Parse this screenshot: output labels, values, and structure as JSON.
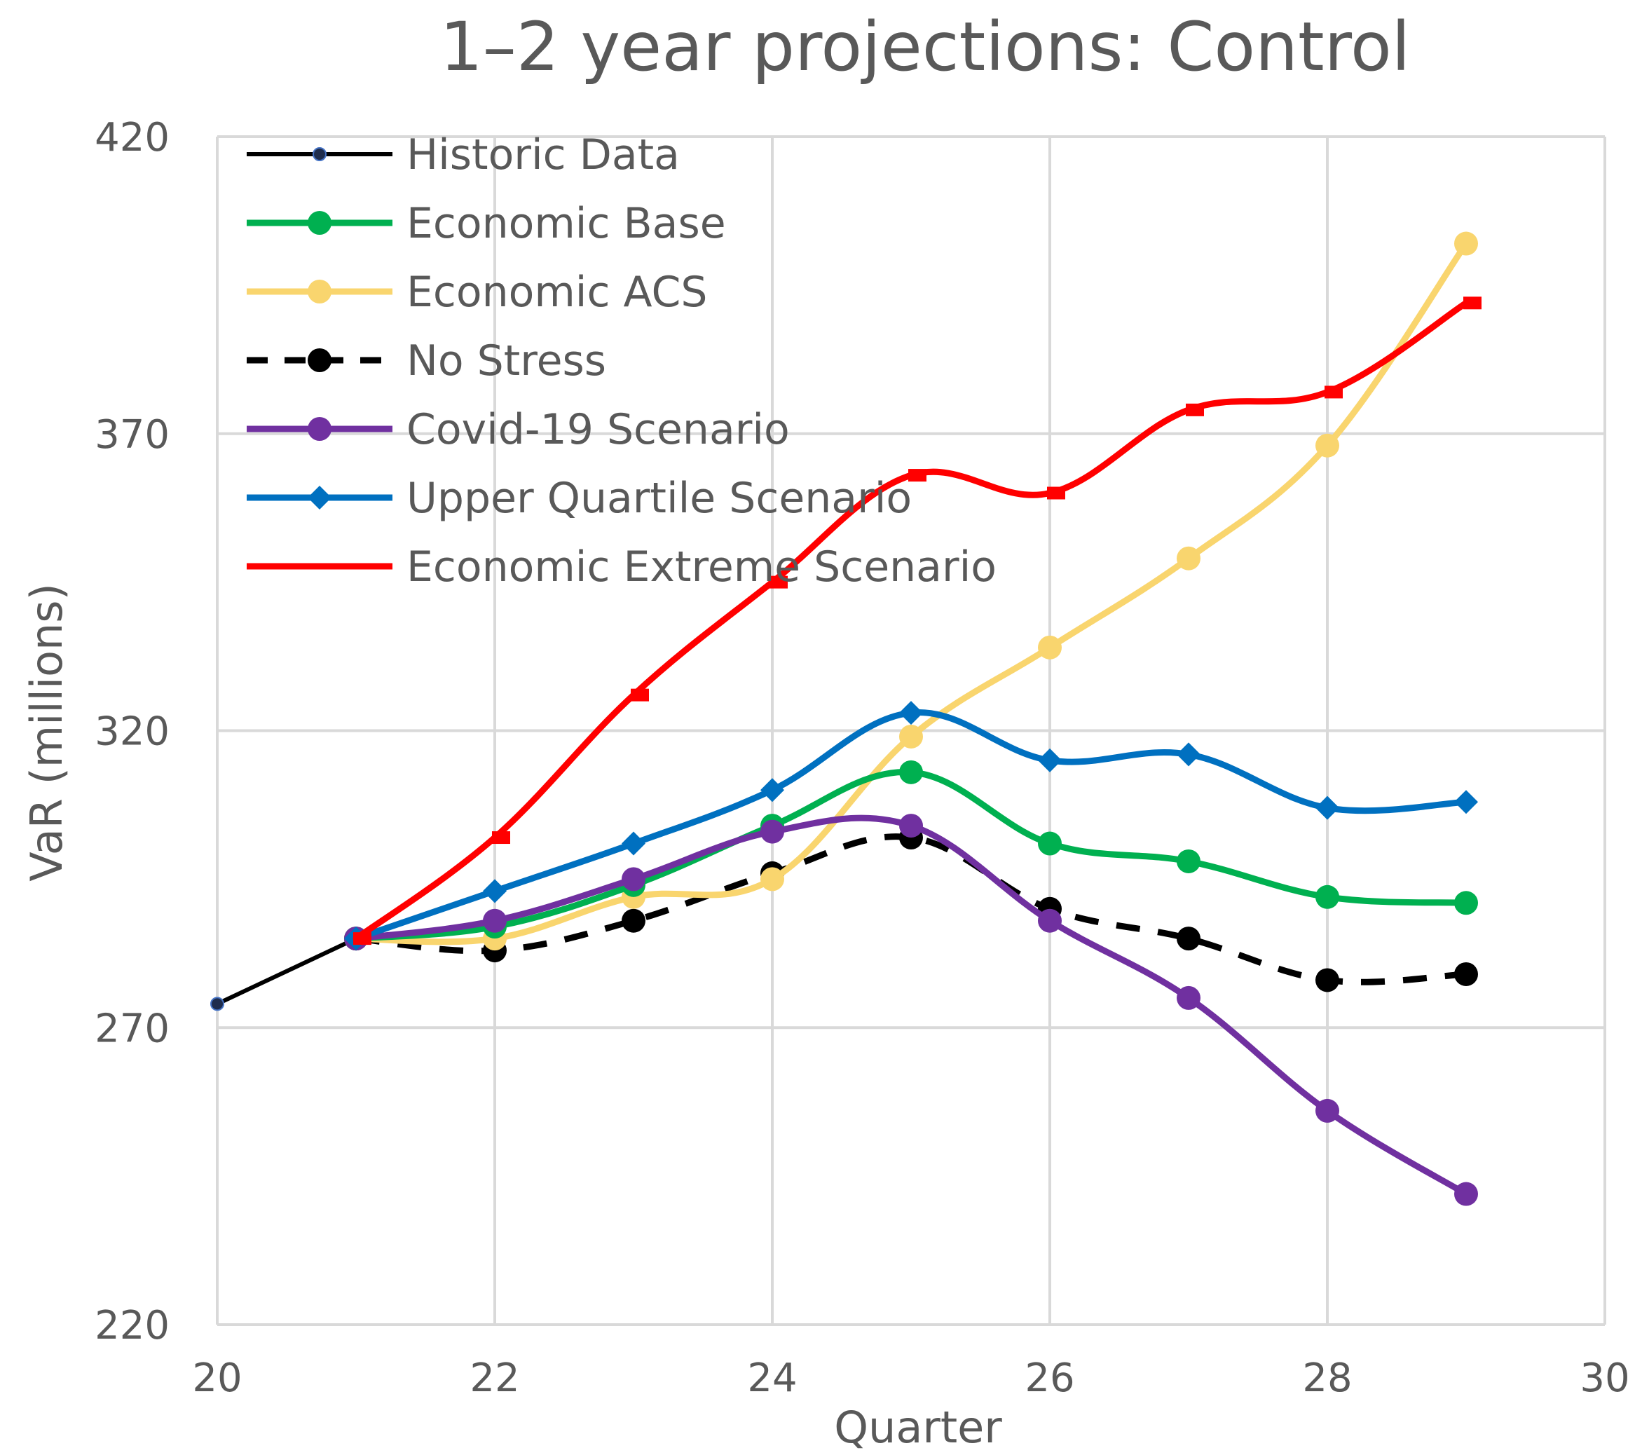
{
  "chart_data": {
    "type": "line",
    "title": "1–2 year projections: Control",
    "xlabel": "Quarter",
    "ylabel": "VaR (millions)",
    "xlim": [
      20,
      30
    ],
    "ylim": [
      220,
      420
    ],
    "xticks": [
      20,
      22,
      24,
      26,
      28,
      30
    ],
    "yticks": [
      220,
      270,
      320,
      370,
      420
    ],
    "grid": true,
    "legend_position": "top-left",
    "series": [
      {
        "name": "Historic Data",
        "color": "#000000",
        "marker": "small-circle",
        "dash": "solid",
        "x": [
          20,
          21
        ],
        "y": [
          274,
          285
        ]
      },
      {
        "name": "Economic Base",
        "color": "#00b050",
        "marker": "circle",
        "dash": "solid",
        "x": [
          21,
          22,
          23,
          24,
          25,
          26,
          27,
          28,
          29
        ],
        "y": [
          285,
          287,
          294,
          304,
          313,
          301,
          298,
          292,
          291
        ]
      },
      {
        "name": "Economic ACS",
        "color": "#f9d56e",
        "marker": "circle",
        "dash": "solid",
        "x": [
          21,
          22,
          23,
          24,
          25,
          26,
          27,
          28,
          29
        ],
        "y": [
          285,
          285,
          292,
          295,
          319,
          334,
          349,
          368,
          402
        ]
      },
      {
        "name": "No Stress",
        "color": "#000000",
        "marker": "circle",
        "dash": "dashed",
        "x": [
          21,
          22,
          23,
          24,
          25,
          26,
          27,
          28,
          29
        ],
        "y": [
          285,
          283,
          288,
          296,
          302,
          290,
          285,
          278,
          279
        ]
      },
      {
        "name": "Covid-19 Scenario",
        "color": "#7030a0",
        "marker": "circle",
        "dash": "solid",
        "x": [
          21,
          22,
          23,
          24,
          25,
          26,
          27,
          28,
          29
        ],
        "y": [
          285,
          288,
          295,
          303,
          304,
          288,
          275,
          256,
          242
        ]
      },
      {
        "name": "Upper Quartile Scenario",
        "color": "#0070c0",
        "marker": "diamond",
        "dash": "solid",
        "x": [
          21,
          22,
          23,
          24,
          25,
          26,
          27,
          28,
          29
        ],
        "y": [
          285,
          293,
          301,
          310,
          323,
          315,
          316,
          307,
          308
        ]
      },
      {
        "name": "Economic Extreme Scenario",
        "color": "#ff0000",
        "marker": "dash",
        "dash": "solid",
        "x": [
          21,
          22,
          23,
          24,
          25,
          26,
          27,
          28,
          29
        ],
        "y": [
          285,
          302,
          326,
          345,
          363,
          360,
          374,
          377,
          392
        ]
      }
    ]
  }
}
